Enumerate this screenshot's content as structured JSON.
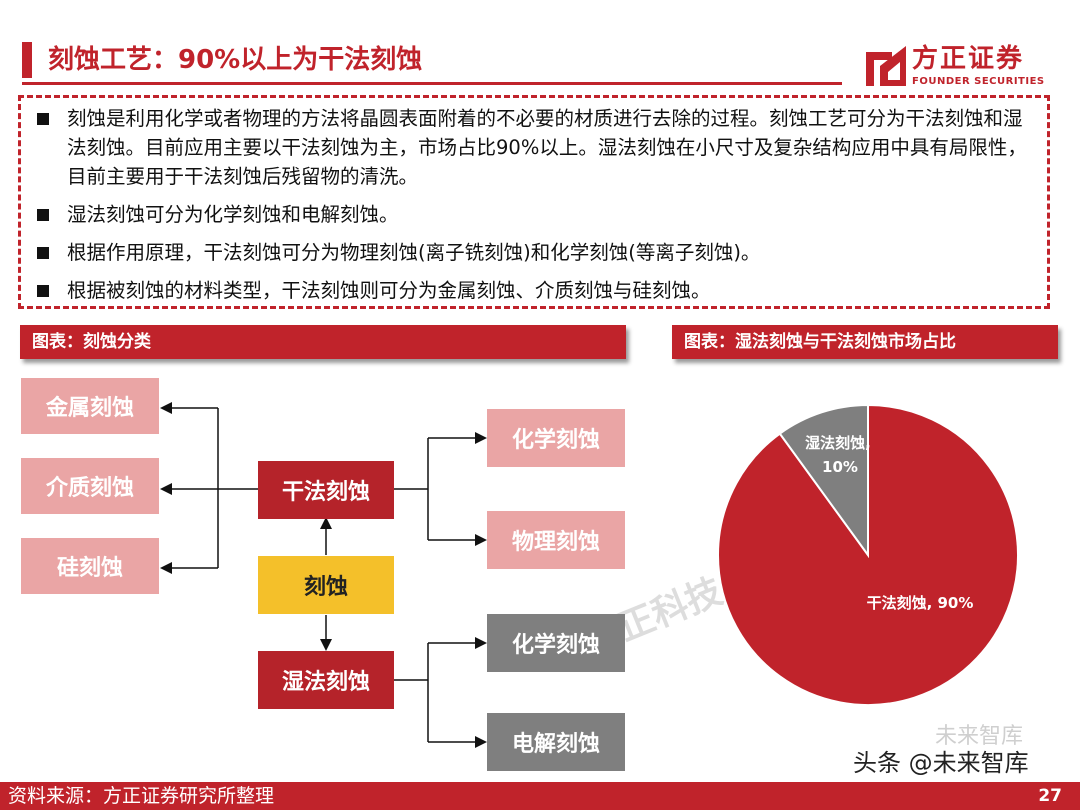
{
  "header": {
    "title": "刻蚀工艺：90%以上为干法刻蚀",
    "logo_cn": "方正证券",
    "logo_en": "FOUNDER SECURITIES"
  },
  "bullets": [
    "刻蚀是利用化学或者物理的方法将晶圆表面附着的不必要的材质进行去除的过程。刻蚀工艺可分为干法刻蚀和湿法刻蚀。目前应用主要以干法刻蚀为主，市场占比90%以上。湿法刻蚀在小尺寸及复杂结构应用中具有局限性，目前主要用于干法刻蚀后残留物的清洗。",
    "湿法刻蚀可分为化学刻蚀和电解刻蚀。",
    "根据作用原理，干法刻蚀可分为物理刻蚀(离子铣刻蚀)和化学刻蚀(等离子刻蚀)。",
    "根据被刻蚀的材料类型，干法刻蚀则可分为金属刻蚀、介质刻蚀与硅刻蚀。"
  ],
  "left_panel": {
    "header": "图表：刻蚀分类",
    "nodes": {
      "root": "刻蚀",
      "dry": "干法刻蚀",
      "wet": "湿法刻蚀",
      "metal": "金属刻蚀",
      "dielectric": "介质刻蚀",
      "silicon": "硅刻蚀",
      "dry_chem": "化学刻蚀",
      "dry_phys": "物理刻蚀",
      "wet_chem": "化学刻蚀",
      "wet_elec": "电解刻蚀"
    },
    "colors": {
      "pink": "#eaa5a5",
      "red": "#b5232a",
      "yellow": "#f4c02a",
      "gray": "#7f7f7f"
    }
  },
  "right_panel": {
    "header": "图表：湿法刻蚀与干法刻蚀市场占比"
  },
  "chart_data": {
    "type": "pie",
    "title": "",
    "slices": [
      {
        "label": "干法刻蚀",
        "value": 90,
        "display": "干法刻蚀, 90%",
        "color": "#c0232b"
      },
      {
        "label": "湿法刻蚀",
        "value": 10,
        "display_line1": "湿法刻蚀,",
        "display_line2": "10%",
        "color": "#7f7f7f"
      }
    ]
  },
  "watermark": "正科技 陈杭",
  "footer": {
    "source": "资料来源：方正证券研究所整理",
    "page": "27",
    "toutiao": "头条 @未来智库",
    "toutiao_ghost": "未来智库"
  }
}
